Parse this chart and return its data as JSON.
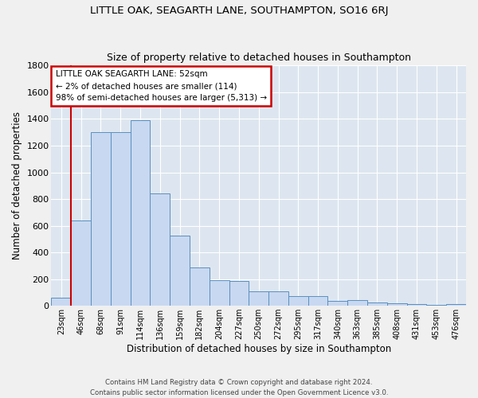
{
  "title": "LITTLE OAK, SEAGARTH LANE, SOUTHAMPTON, SO16 6RJ",
  "subtitle": "Size of property relative to detached houses in Southampton",
  "xlabel": "Distribution of detached houses by size in Southampton",
  "ylabel": "Number of detached properties",
  "bar_color": "#c8d8f0",
  "bar_edge_color": "#5a8fc0",
  "bg_color": "#dde6f0",
  "grid_color": "#ffffff",
  "fig_bg_color": "#f0f0f0",
  "categories": [
    "23sqm",
    "46sqm",
    "68sqm",
    "91sqm",
    "114sqm",
    "136sqm",
    "159sqm",
    "182sqm",
    "204sqm",
    "227sqm",
    "250sqm",
    "272sqm",
    "295sqm",
    "317sqm",
    "340sqm",
    "363sqm",
    "385sqm",
    "408sqm",
    "431sqm",
    "453sqm",
    "476sqm"
  ],
  "values": [
    60,
    640,
    1300,
    1300,
    1390,
    840,
    525,
    285,
    190,
    185,
    110,
    110,
    70,
    70,
    35,
    40,
    25,
    20,
    15,
    5,
    15
  ],
  "red_line_x": 1.0,
  "ylim": [
    0,
    1800
  ],
  "yticks": [
    0,
    200,
    400,
    600,
    800,
    1000,
    1200,
    1400,
    1600,
    1800
  ],
  "annotation_title": "LITTLE OAK SEAGARTH LANE: 52sqm",
  "annotation_line1": "← 2% of detached houses are smaller (114)",
  "annotation_line2": "98% of semi-detached houses are larger (5,313) →",
  "annotation_box_color": "#ffffff",
  "annotation_box_edge": "#cc0000",
  "footer1": "Contains HM Land Registry data © Crown copyright and database right 2024.",
  "footer2": "Contains public sector information licensed under the Open Government Licence v3.0."
}
